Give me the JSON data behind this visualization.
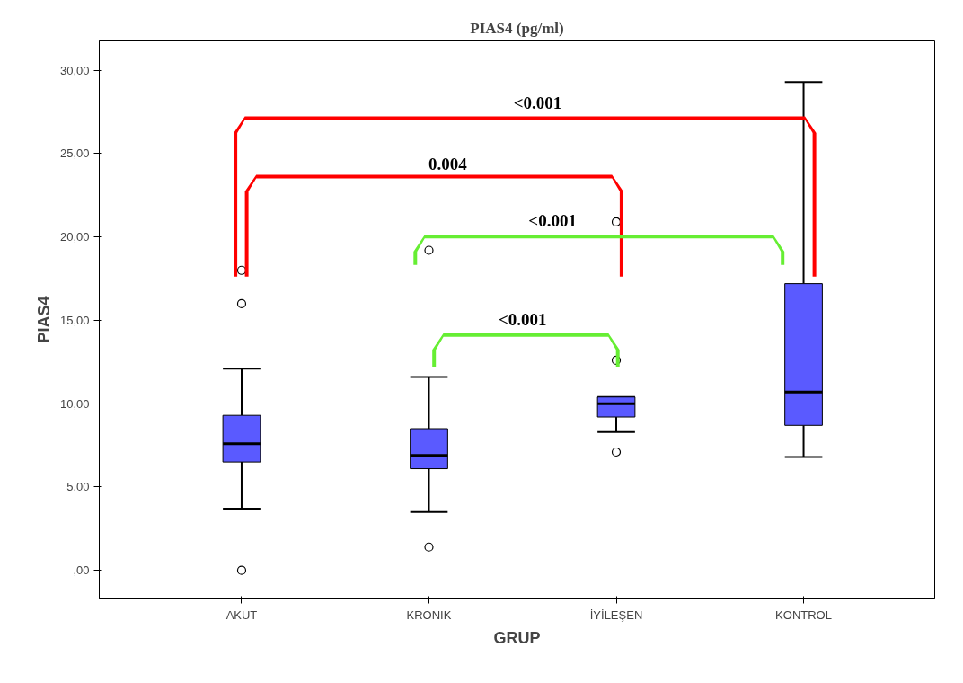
{
  "chart_data": {
    "type": "box",
    "title": "PIAS4 (pg/ml)",
    "xlabel": "GRUP",
    "ylabel": "PIAS4",
    "categories": [
      "AKUT",
      "KRONIK",
      "İYİLEŞEN",
      "KONTROL"
    ],
    "boxes": [
      {
        "low": 3.7,
        "q1": 6.5,
        "median": 7.6,
        "q3": 9.3,
        "high": 12.1,
        "outliers": [
          16.0,
          0.0,
          18.0
        ]
      },
      {
        "low": 3.5,
        "q1": 6.1,
        "median": 6.9,
        "q3": 8.5,
        "high": 11.6,
        "outliers": [
          1.4,
          19.2
        ]
      },
      {
        "low": 8.3,
        "q1": 9.2,
        "median": 10.0,
        "q3": 10.4,
        "high": 10.4,
        "outliers": [
          12.6,
          7.1,
          20.9
        ]
      },
      {
        "low": 6.8,
        "q1": 8.7,
        "median": 10.7,
        "q3": 17.2,
        "high": 29.3
      }
    ],
    "color": "#5a5aff",
    "ylim": [
      -1.66,
      31.76
    ],
    "yticks": [
      {
        "value": 0,
        "label": ",00"
      },
      {
        "value": 5,
        "label": "5,00"
      },
      {
        "value": 10,
        "label": "10,00"
      },
      {
        "value": 15,
        "label": "15,00"
      },
      {
        "value": 20,
        "label": "20,00"
      },
      {
        "value": 25,
        "label": "25,00"
      },
      {
        "value": 30,
        "label": "30,00"
      }
    ],
    "grid": false,
    "annotations": [
      "<0.001",
      "0.004",
      "<0.001",
      "<0.001"
    ]
  }
}
